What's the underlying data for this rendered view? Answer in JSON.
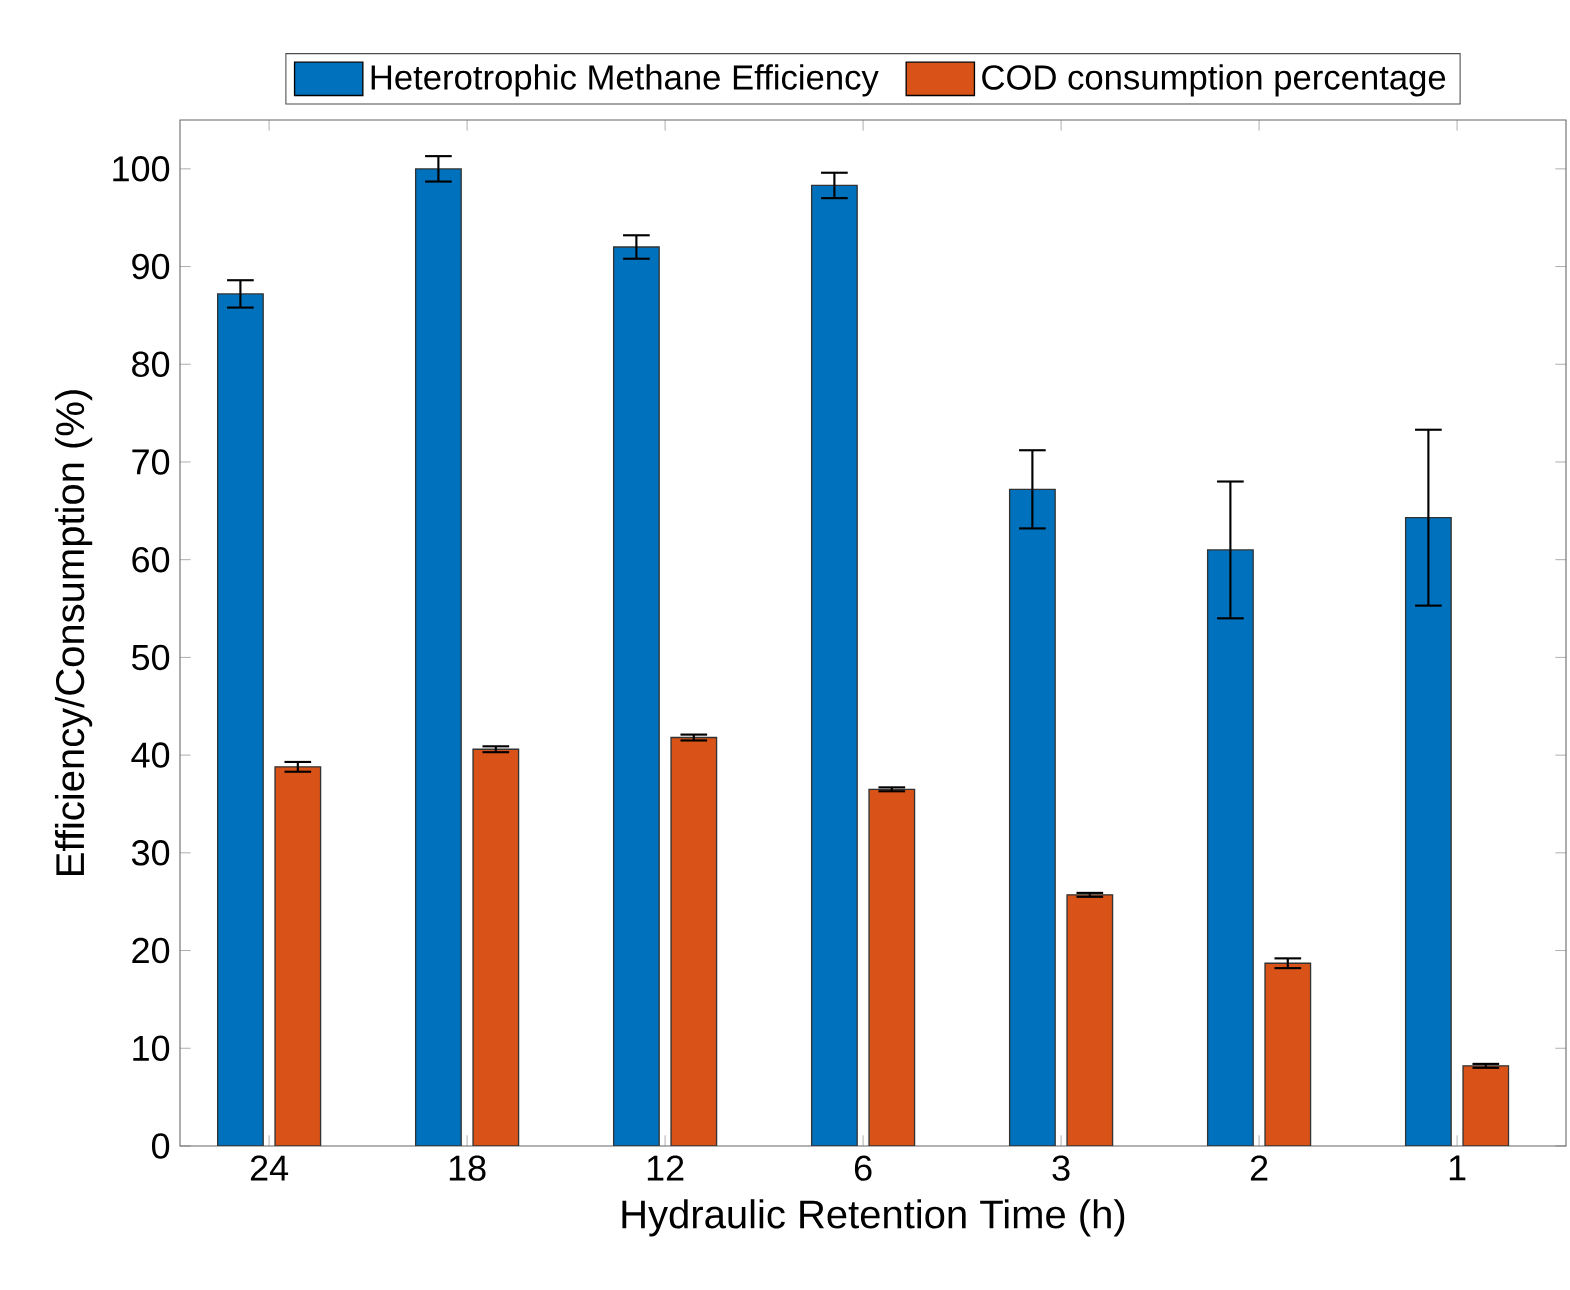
{
  "chart_data": {
    "type": "bar",
    "xlabel": "Hydraulic Retention Time (h)",
    "ylabel": "Efficiency/Consumption (%)",
    "categories": [
      "24",
      "18",
      "12",
      "6",
      "3",
      "2",
      "1"
    ],
    "series": [
      {
        "name": "Heterotrophic Methane Efficiency",
        "color": "#0072bd",
        "values": [
          87.2,
          100,
          92,
          98.3,
          67.2,
          61,
          64.3
        ],
        "errors": [
          1.4,
          1.3,
          1.2,
          1.3,
          4,
          7,
          9
        ]
      },
      {
        "name": "COD consumption percentage",
        "color": "#d95319",
        "values": [
          38.8,
          40.6,
          41.8,
          36.5,
          25.7,
          18.7,
          8.2
        ],
        "errors": [
          0.5,
          0.3,
          0.3,
          0.2,
          0.2,
          0.5,
          0.2
        ]
      }
    ],
    "ylim": [
      0,
      105
    ],
    "yticks": [
      0,
      10,
      20,
      30,
      40,
      50,
      60,
      70,
      80,
      90,
      100
    ],
    "legend": "top",
    "grid": false
  }
}
